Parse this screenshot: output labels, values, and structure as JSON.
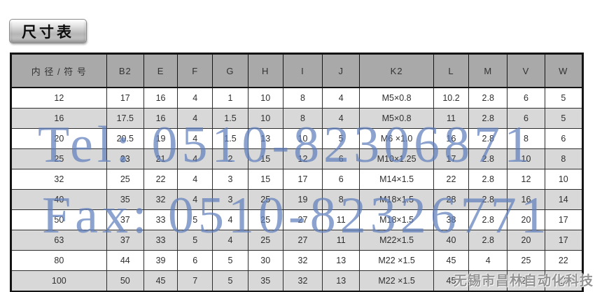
{
  "page": {
    "title_badge": "尺寸表"
  },
  "table": {
    "columns": [
      "内 径 / 符 号",
      "B2",
      "E",
      "F",
      "G",
      "H",
      "I",
      "J",
      "K2",
      "L",
      "M",
      "V",
      "W"
    ],
    "rows": [
      [
        "12",
        "17",
        "16",
        "4",
        "1",
        "10",
        "8",
        "4",
        "M5×0.8",
        "10.2",
        "2.8",
        "6",
        "5"
      ],
      [
        "16",
        "17.5",
        "16",
        "4",
        "1.5",
        "10",
        "8",
        "4",
        "M5×0.8",
        "11",
        "2.8",
        "6",
        "5"
      ],
      [
        "20",
        "20.5",
        "19",
        "4",
        "1.5",
        "13",
        "10",
        "5",
        "M6 ×1.0",
        "16",
        "2.8",
        "8",
        "6"
      ],
      [
        "25",
        "23",
        "21",
        "4",
        "2",
        "15",
        "12",
        "6",
        "M10×1.25",
        "17",
        "2.8",
        "10",
        "8"
      ],
      [
        "32",
        "25",
        "22",
        "4",
        "3",
        "15",
        "17",
        "6",
        "M14×1.5",
        "22",
        "2.8",
        "12",
        "10"
      ],
      [
        "40",
        "35",
        "32",
        "4",
        "3",
        "25",
        "19",
        "8",
        "M18×1.5",
        "28",
        "2.8",
        "16",
        "14"
      ],
      [
        "50",
        "37",
        "33",
        "5",
        "4",
        "25",
        "27",
        "11",
        "M18×1.5",
        "38",
        "2.8",
        "20",
        "17"
      ],
      [
        "63",
        "37",
        "33",
        "5",
        "4",
        "25",
        "27",
        "11",
        "M22×1.5",
        "40",
        "2.8",
        "20",
        "17"
      ],
      [
        "80",
        "44",
        "39",
        "6",
        "5",
        "30",
        "32",
        "13",
        "M22 ×1.5",
        "45",
        "4",
        "25",
        "22"
      ],
      [
        "100",
        "50",
        "45",
        "7",
        "5",
        "35",
        "32",
        "13",
        "M22 ×1.5",
        "45",
        "4",
        "25",
        "22"
      ]
    ]
  },
  "watermarks": {
    "tel": "Tel: 0510-82306871",
    "fax": "Fax: 0510-82326771",
    "company": "无锡市昌林自动化科技"
  },
  "colors": {
    "header_bg": "#A9A9A9",
    "row_alt_bg": "#D8D8D8",
    "row_bg": "#FFFFFF",
    "table_border": "#141414",
    "watermark_blue": "#607EBC",
    "company_gray": "#949494"
  }
}
